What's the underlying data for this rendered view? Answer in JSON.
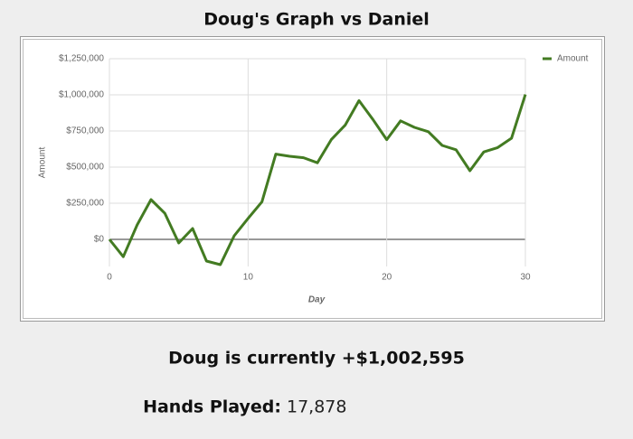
{
  "chart_data": {
    "type": "line",
    "title": "Doug's Graph vs Daniel",
    "x_label": "Day",
    "y_label": "Amount",
    "x": [
      0,
      1,
      2,
      3,
      4,
      5,
      6,
      7,
      8,
      9,
      10,
      11,
      12,
      13,
      14,
      15,
      16,
      17,
      18,
      19,
      20,
      21,
      22,
      23,
      24,
      25,
      26,
      27,
      28,
      29,
      30
    ],
    "series": [
      {
        "name": "Amount",
        "color": "#437b22",
        "values": [
          0,
          -120000,
          100000,
          275000,
          180000,
          -25000,
          75000,
          -150000,
          -175000,
          25000,
          145000,
          260000,
          590000,
          575000,
          565000,
          530000,
          690000,
          790000,
          960000,
          830000,
          690000,
          820000,
          775000,
          745000,
          650000,
          620000,
          475000,
          605000,
          635000,
          700000,
          1002595
        ]
      }
    ],
    "xlim": [
      0,
      30
    ],
    "xticks": [
      0,
      10,
      20,
      30
    ],
    "ylim": [
      -187500,
      1250000
    ],
    "yticks": [
      {
        "value": 0,
        "label": "$0"
      },
      {
        "value": 250000,
        "label": "$250,000"
      },
      {
        "value": 500000,
        "label": "$500,000"
      },
      {
        "value": 750000,
        "label": "$750,000"
      },
      {
        "value": 1000000,
        "label": "$1,000,000"
      },
      {
        "value": 1250000,
        "label": "$1,250,000"
      }
    ],
    "grid": true,
    "legend": "top-right"
  },
  "summary": "Doug is currently +$1,002,595",
  "hands_label": "Hands Played:",
  "hands_value": "17,878"
}
